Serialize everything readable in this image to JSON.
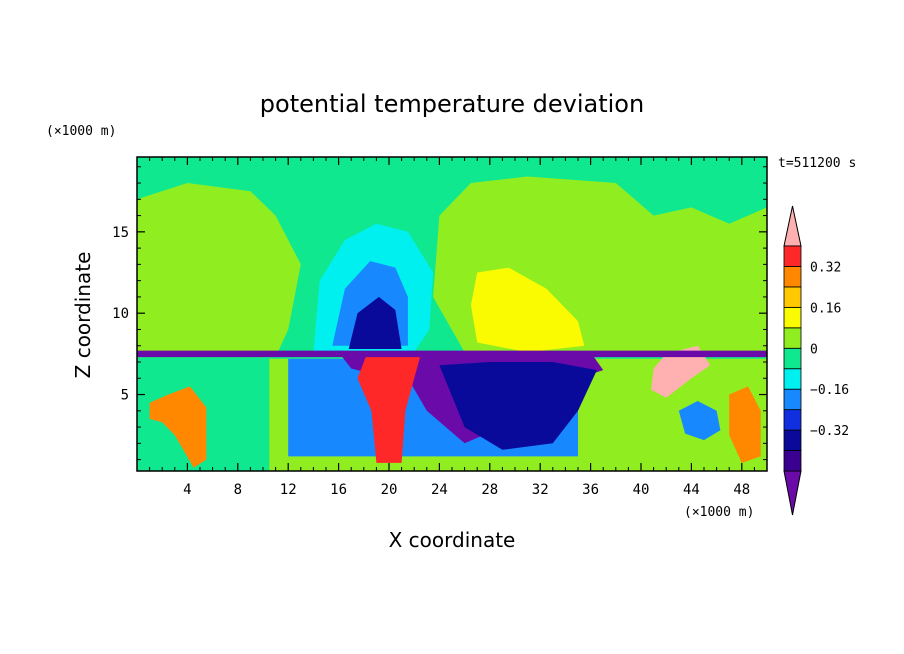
{
  "chart_data": {
    "type": "heatmap",
    "title": "potential temperature deviation",
    "xlabel": "X coordinate",
    "ylabel": "Z coordinate",
    "x_unit": "(×1000 m)",
    "y_unit": "(×1000 m)",
    "time_label": "t=511200 s",
    "xlim": [
      0,
      50
    ],
    "ylim": [
      0.3,
      19.6
    ],
    "x_ticks": [
      4,
      8,
      12,
      16,
      20,
      24,
      28,
      32,
      36,
      40,
      44,
      48
    ],
    "y_ticks": [
      5,
      10,
      15
    ],
    "colorbar": {
      "levels": [
        -0.48,
        -0.4,
        -0.32,
        -0.24,
        -0.16,
        -0.08,
        0,
        0.08,
        0.16,
        0.24,
        0.32,
        0.4
      ],
      "colors": [
        "#6a0aa8",
        "#3a0090",
        "#0a0a9a",
        "#1030e0",
        "#1888ff",
        "#00f0f0",
        "#10e890",
        "#90ee20",
        "#fafa00",
        "#ffc800",
        "#ff8800",
        "#ff2828",
        "#ffb0b0"
      ],
      "tick_labels": [
        "0.32",
        "0.16",
        "0",
        "−0.16",
        "−0.32"
      ],
      "tick_values": [
        0.32,
        0.16,
        0,
        -0.16,
        -0.32
      ]
    },
    "field_regions": [
      {
        "color": "#10e890",
        "coords": [
          [
            0,
            0.3
          ],
          [
            50,
            0.3
          ],
          [
            50,
            19.6
          ],
          [
            0,
            19.6
          ]
        ]
      },
      {
        "color": "#90ee20",
        "coords": [
          [
            0,
            17
          ],
          [
            4,
            18
          ],
          [
            9,
            17.5
          ],
          [
            11,
            16
          ],
          [
            13,
            13
          ],
          [
            12,
            9
          ],
          [
            11,
            7.3
          ],
          [
            0,
            7.3
          ]
        ]
      },
      {
        "color": "#90ee20",
        "coords": [
          [
            26,
            7.6
          ],
          [
            23.5,
            11
          ],
          [
            24,
            16
          ],
          [
            26.5,
            18
          ],
          [
            31,
            18.4
          ],
          [
            38,
            18
          ],
          [
            41,
            16
          ],
          [
            44,
            16.5
          ],
          [
            47,
            15.5
          ],
          [
            50,
            16.5
          ],
          [
            50,
            7.3
          ],
          [
            44,
            7.3
          ],
          [
            36,
            7.3
          ]
        ]
      },
      {
        "color": "#90ee20",
        "coords": [
          [
            10.5,
            0.3
          ],
          [
            50,
            0.3
          ],
          [
            50,
            7.2
          ],
          [
            10.5,
            7.2
          ]
        ]
      },
      {
        "color": "#fafa00",
        "coords": [
          [
            27,
            12.5
          ],
          [
            29.5,
            12.8
          ],
          [
            32.5,
            11.5
          ],
          [
            35,
            9.5
          ],
          [
            35.5,
            8
          ],
          [
            31,
            7.6
          ],
          [
            27,
            8.2
          ],
          [
            26.5,
            10.5
          ]
        ]
      },
      {
        "color": "#00f0f0",
        "coords": [
          [
            14,
            7.6
          ],
          [
            14.5,
            12
          ],
          [
            16.5,
            14.5
          ],
          [
            19,
            15.5
          ],
          [
            21.5,
            15
          ],
          [
            23.5,
            12.5
          ],
          [
            23.2,
            9
          ],
          [
            22,
            7.6
          ]
        ]
      },
      {
        "color": "#1888ff",
        "coords": [
          [
            15.5,
            8
          ],
          [
            16.5,
            11.5
          ],
          [
            18.5,
            13.2
          ],
          [
            20.5,
            12.8
          ],
          [
            21.5,
            11
          ],
          [
            21.5,
            8
          ]
        ]
      },
      {
        "color": "#0a0a9a",
        "coords": [
          [
            16.8,
            7.8
          ],
          [
            17.5,
            10
          ],
          [
            19.2,
            11
          ],
          [
            20.5,
            10.2
          ],
          [
            21,
            7.8
          ]
        ]
      },
      {
        "color": "#1888ff",
        "coords": [
          [
            12,
            7.2
          ],
          [
            35,
            7.2
          ],
          [
            35,
            1.2
          ],
          [
            12,
            1.2
          ]
        ]
      },
      {
        "color": "#6a0aa8",
        "coords": [
          [
            16,
            7.6
          ],
          [
            36,
            7.6
          ],
          [
            37,
            6.5
          ],
          [
            33,
            5.5
          ],
          [
            31,
            5
          ],
          [
            29,
            3
          ],
          [
            26,
            2
          ],
          [
            23,
            4
          ],
          [
            21.5,
            6
          ],
          [
            18.5,
            6.3
          ],
          [
            17,
            6.6
          ]
        ]
      },
      {
        "color": "#0a0a9a",
        "coords": [
          [
            24,
            6.8
          ],
          [
            26,
            3
          ],
          [
            29,
            1.6
          ],
          [
            33,
            2
          ],
          [
            35,
            4
          ],
          [
            36.5,
            6.5
          ],
          [
            33,
            7
          ],
          [
            28,
            7
          ]
        ]
      },
      {
        "color": "#ffb0b0",
        "coords": [
          [
            19,
            7.3
          ],
          [
            21.5,
            7.3
          ],
          [
            21.8,
            6
          ],
          [
            21,
            4
          ],
          [
            20.5,
            1.2
          ],
          [
            19.5,
            1.2
          ],
          [
            19,
            4
          ],
          [
            18.2,
            6
          ]
        ]
      },
      {
        "color": "#ff2828",
        "coords": [
          [
            18.2,
            7.4
          ],
          [
            22.5,
            7.4
          ],
          [
            22,
            6
          ],
          [
            21.3,
            4
          ],
          [
            21,
            0.8
          ],
          [
            19,
            0.8
          ],
          [
            18.6,
            4
          ],
          [
            17.5,
            6
          ]
        ]
      },
      {
        "color": "#ffb0b0",
        "coords": [
          [
            41,
            6.6
          ],
          [
            42,
            7.5
          ],
          [
            44.5,
            8
          ],
          [
            45.5,
            6.8
          ],
          [
            44,
            6
          ],
          [
            42,
            4.8
          ],
          [
            40.8,
            5.3
          ]
        ]
      },
      {
        "color": "#ff8800",
        "coords": [
          [
            1,
            4.5
          ],
          [
            2.5,
            5
          ],
          [
            4.2,
            5.5
          ],
          [
            5.5,
            4.2
          ],
          [
            5.5,
            1
          ],
          [
            4.5,
            0.5
          ],
          [
            3,
            2.5
          ],
          [
            2,
            3.3
          ],
          [
            1,
            3.5
          ]
        ]
      },
      {
        "color": "#1888ff",
        "coords": [
          [
            43,
            4
          ],
          [
            44.5,
            4.6
          ],
          [
            46,
            4
          ],
          [
            46.3,
            2.8
          ],
          [
            45,
            2.2
          ],
          [
            43.5,
            2.6
          ]
        ]
      },
      {
        "color": "#ff8800",
        "coords": [
          [
            47,
            5
          ],
          [
            48.5,
            5.5
          ],
          [
            49.5,
            4
          ],
          [
            49.5,
            1.2
          ],
          [
            48,
            0.8
          ],
          [
            47,
            2.5
          ]
        ]
      },
      {
        "color": "#6a0aa8",
        "coords": [
          [
            0,
            7.3
          ],
          [
            50,
            7.3
          ],
          [
            50,
            7.7
          ],
          [
            0,
            7.7
          ]
        ]
      }
    ]
  }
}
